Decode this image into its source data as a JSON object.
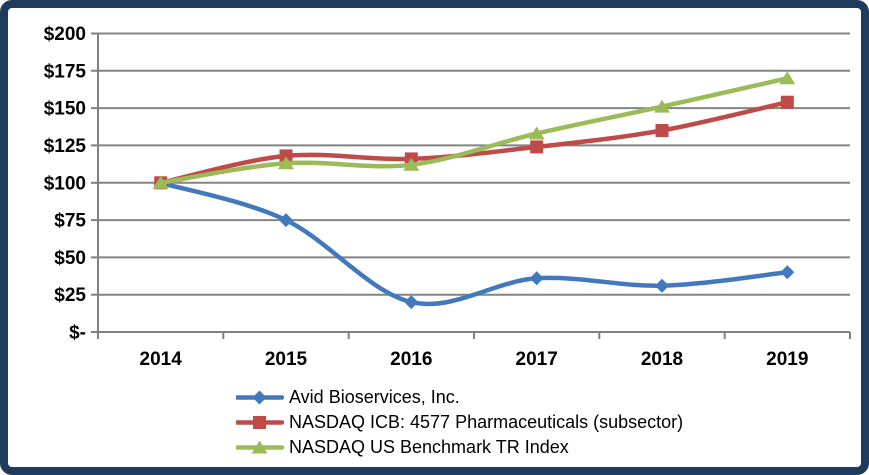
{
  "frame": {
    "border_color": "#1e3a5f",
    "background_color": "#ffffff"
  },
  "chart_data": {
    "type": "line",
    "title": "",
    "x_labels": [
      "2014",
      "2015",
      "2016",
      "2017",
      "2018",
      "2019"
    ],
    "y_ticks": [
      0,
      25,
      50,
      75,
      100,
      125,
      150,
      175,
      200
    ],
    "y_tick_labels": [
      "$-",
      "$25",
      "$50",
      "$75",
      "$100",
      "$125",
      "$150",
      "$175",
      "$200"
    ],
    "ylim": [
      0,
      200
    ],
    "grid": true,
    "smooth_lines": true,
    "legend_position": "bottom",
    "axis_color": "#808080",
    "grid_color": "#848484",
    "label_color": "#000000",
    "series": [
      {
        "name": "Avid Bioservices, Inc.",
        "color": "#4279BD",
        "marker": "diamond",
        "values": [
          100,
          75,
          20,
          36,
          31,
          40
        ]
      },
      {
        "name": "NASDAQ ICB: 4577 Pharmaceuticals (subsector)",
        "color": "#BE4B48",
        "marker": "square",
        "values": [
          100,
          118,
          116,
          124,
          135,
          154
        ]
      },
      {
        "name": "NASDAQ US Benchmark TR Index",
        "color": "#9BBB59",
        "marker": "triangle",
        "values": [
          100,
          113,
          112,
          133,
          151,
          170
        ]
      }
    ]
  }
}
